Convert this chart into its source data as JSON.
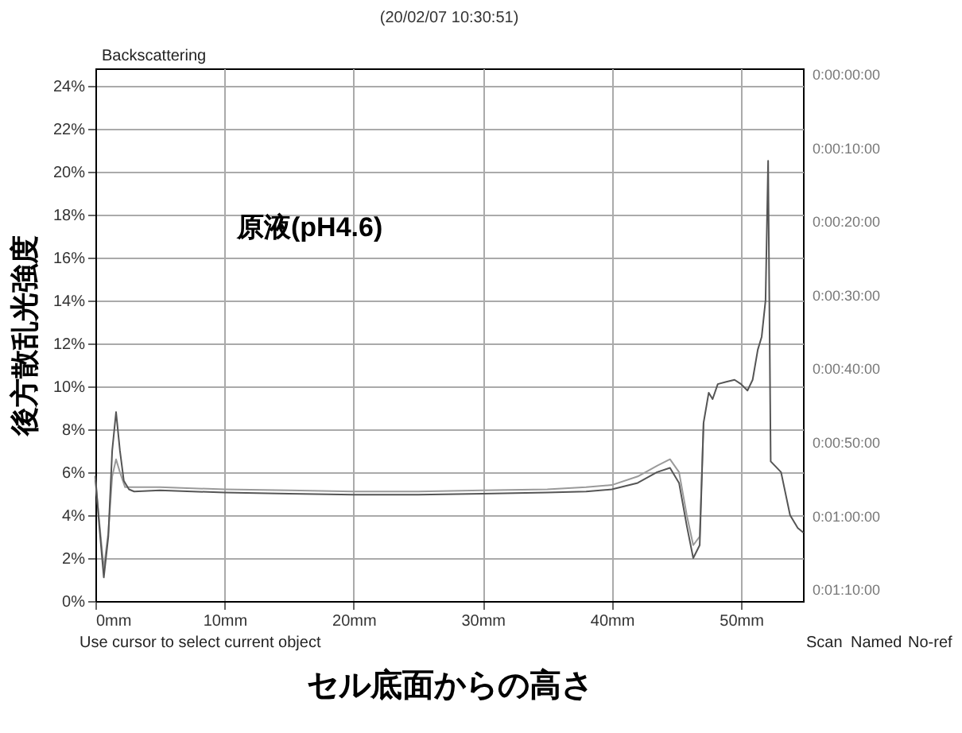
{
  "chart_data": {
    "type": "line",
    "title": "(20/02/07 10:30:51)",
    "xlabel": "セル底面からの高さ",
    "ylabel": "後方散乱光強度",
    "annotations": [
      "Backscattering",
      "原液(pH4.6)",
      "Use cursor to select current object",
      "Scan",
      "Named",
      "No-ref",
      "0:00:00:00",
      "0:00:10:00",
      "0:00:20:00",
      "0:00:30:00",
      "0:00:40:00",
      "0:00:50:00",
      "0:01:00:00",
      "0:01:10:00"
    ],
    "xlim": [
      0,
      54.8
    ],
    "ylim": [
      0,
      24.8
    ],
    "xticks": [
      {
        "value": 0,
        "label": "0mm"
      },
      {
        "value": 10,
        "label": "10mm"
      },
      {
        "value": 20,
        "label": "20mm"
      },
      {
        "value": 30,
        "label": "30mm"
      },
      {
        "value": 40,
        "label": "40mm"
      },
      {
        "value": 50,
        "label": "50mm"
      }
    ],
    "yticks": [
      {
        "value": 0,
        "label": "0%"
      },
      {
        "value": 2,
        "label": "2%"
      },
      {
        "value": 4,
        "label": "4%"
      },
      {
        "value": 6,
        "label": "6%"
      },
      {
        "value": 8,
        "label": "8%"
      },
      {
        "value": 10,
        "label": "10%"
      },
      {
        "value": 12,
        "label": "12%"
      },
      {
        "value": 14,
        "label": "14%"
      },
      {
        "value": 16,
        "label": "16%"
      },
      {
        "value": 18,
        "label": "18%"
      },
      {
        "value": 20,
        "label": "20%"
      },
      {
        "value": 22,
        "label": "22%"
      },
      {
        "value": 24,
        "label": "24%"
      }
    ],
    "grid": true,
    "legend": false,
    "marker": "none",
    "line_style": "solid",
    "series": [
      {
        "color": "#9a9a9a",
        "x": [
          0,
          0.3,
          0.65,
          1.0,
          1.3,
          1.6,
          1.9,
          2.3,
          3,
          5,
          10,
          15,
          20,
          25,
          30,
          35,
          38,
          40,
          42,
          43.5,
          44.5,
          45.2,
          45.8,
          46.3,
          46.8,
          47.1
        ],
        "values": [
          5.6,
          3.7,
          1.5,
          3.2,
          5.8,
          6.6,
          6.0,
          5.3,
          5.3,
          5.3,
          5.2,
          5.15,
          5.1,
          5.1,
          5.15,
          5.2,
          5.3,
          5.4,
          5.8,
          6.3,
          6.6,
          6.0,
          4.0,
          2.6,
          3.0,
          8.3
        ]
      },
      {
        "color": "#555555",
        "x": [
          0,
          0.3,
          0.65,
          1.0,
          1.3,
          1.6,
          1.9,
          2.2,
          2.6,
          3,
          5,
          10,
          15,
          20,
          25,
          30,
          35,
          38,
          40,
          42,
          43.5,
          44.5,
          45.2,
          45.8,
          46.3,
          46.8,
          47.1,
          47.5,
          47.8,
          48.2,
          48.8,
          49.5,
          50,
          50.5,
          50.9,
          51.3,
          51.6,
          51.9,
          52.1,
          52.3,
          53.1,
          53.8,
          54.4,
          54.8
        ],
        "values": [
          5.8,
          3.5,
          1.1,
          3,
          7,
          8.8,
          7,
          5.6,
          5.2,
          5.1,
          5.15,
          5.05,
          5.0,
          4.95,
          4.95,
          5.0,
          5.05,
          5.1,
          5.2,
          5.5,
          6.0,
          6.2,
          5.5,
          3.5,
          2.0,
          2.6,
          8.3,
          9.7,
          9.4,
          10.1,
          10.2,
          10.3,
          10.1,
          9.8,
          10.3,
          11.7,
          12.3,
          14,
          20.5,
          6.5,
          6.0,
          4.0,
          3.4,
          3.2
        ]
      }
    ]
  }
}
